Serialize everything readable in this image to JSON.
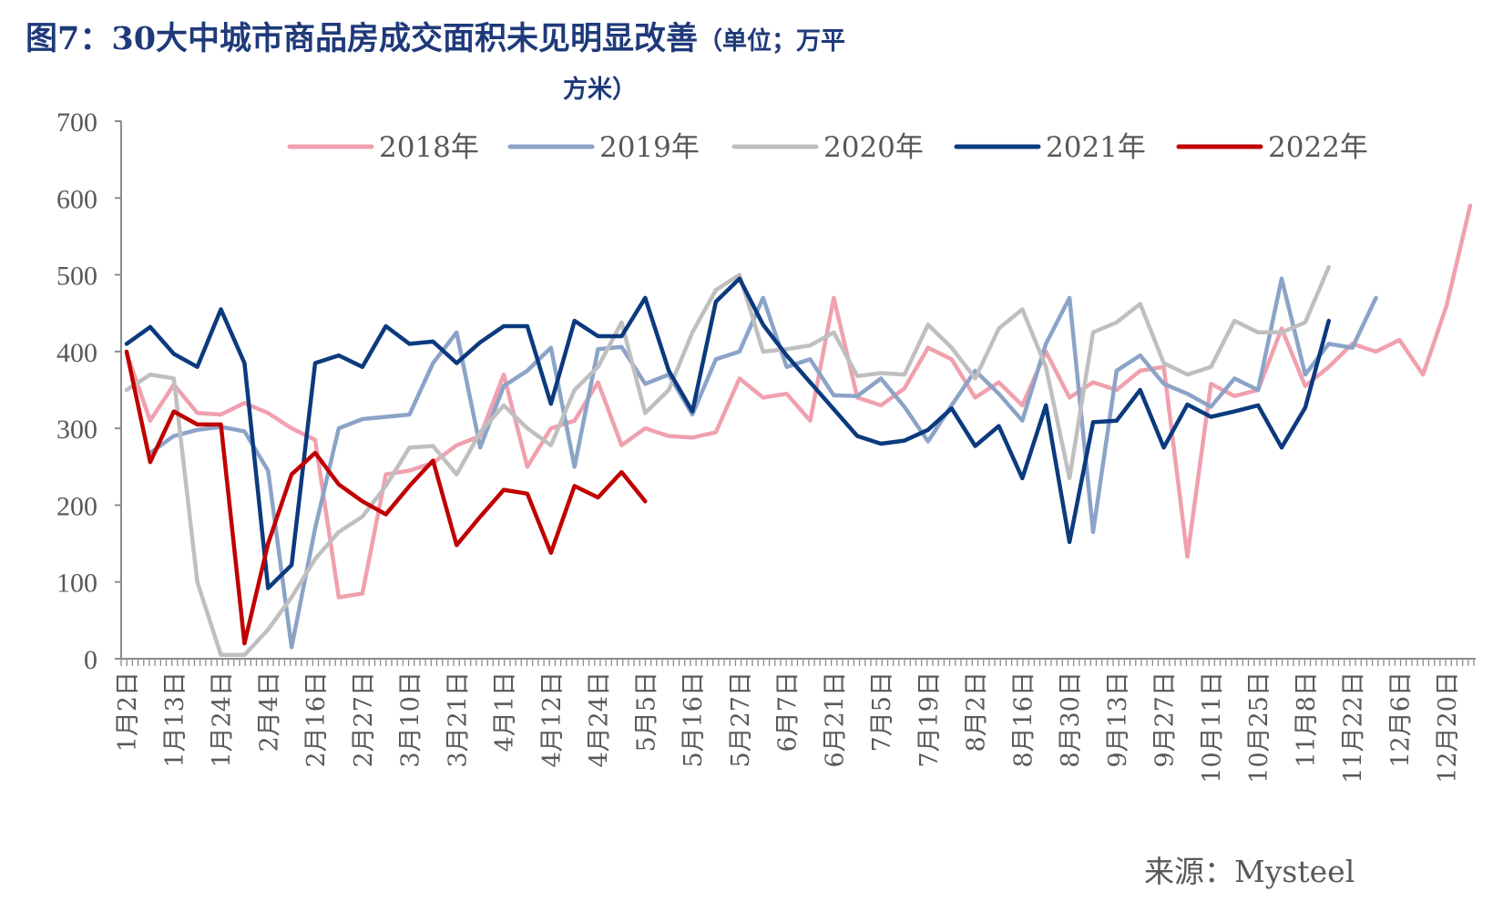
{
  "title": {
    "main": "图7：30大中城市商品房成交面积未见明显改善",
    "unit_open": "（单位；万平",
    "unit_close": "方米）"
  },
  "source": "来源：Mysteel",
  "chart_data": {
    "type": "line",
    "ylim": [
      0,
      700
    ],
    "yticks": [
      0,
      100,
      200,
      300,
      400,
      500,
      600,
      700
    ],
    "grid": false,
    "legend_position": "top",
    "x_tick_labels": [
      "1月2日",
      "1月13日",
      "1月24日",
      "2月4日",
      "2月16日",
      "2月27日",
      "3月10日",
      "3月21日",
      "4月1日",
      "4月12日",
      "4月24日",
      "5月5日",
      "5月16日",
      "5月27日",
      "6月7日",
      "6月21日",
      "7月5日",
      "7月19日",
      "8月2日",
      "8月16日",
      "8月30日",
      "9月13日",
      "9月27日",
      "10月11日",
      "10月25日",
      "11月8日",
      "11月22日",
      "12月6日",
      "12月20日"
    ],
    "x_tick_positions": [
      0,
      2,
      4,
      6,
      8,
      10,
      12,
      14,
      16,
      18,
      20,
      22,
      24,
      26,
      28,
      30,
      32,
      34,
      36,
      38,
      40,
      42,
      44,
      46,
      48,
      50,
      52,
      54,
      56
    ],
    "n_points": 58,
    "series": [
      {
        "name": "2018年",
        "color": "#f0a0ae",
        "values": [
          398,
          310,
          357,
          320,
          318,
          333,
          320,
          300,
          285,
          80,
          85,
          240,
          245,
          255,
          278,
          290,
          370,
          250,
          300,
          310,
          360,
          278,
          300,
          290,
          288,
          295,
          365,
          340,
          345,
          310,
          470,
          340,
          330,
          352,
          405,
          390,
          340,
          360,
          330,
          400,
          340,
          360,
          350,
          375,
          380,
          133,
          358,
          342,
          350,
          430,
          355,
          380,
          410,
          400,
          415,
          370,
          460,
          590
        ]
      },
      {
        "name": "2019年",
        "color": "#8ca3c8",
        "values": [
          null,
          268,
          290,
          298,
          302,
          296,
          245,
          15,
          170,
          300,
          312,
          315,
          318,
          385,
          425,
          275,
          355,
          375,
          405,
          250,
          403,
          406,
          358,
          370,
          318,
          390,
          400,
          470,
          380,
          390,
          343,
          342,
          365,
          328,
          283,
          330,
          375,
          345,
          310,
          410,
          470,
          165,
          375,
          395,
          358,
          345,
          328,
          365,
          350,
          495,
          370,
          410,
          405,
          470
        ]
      },
      {
        "name": "2020年",
        "color": "#bfbfbf",
        "values": [
          350,
          370,
          365,
          100,
          5,
          5,
          38,
          80,
          130,
          165,
          185,
          225,
          275,
          277,
          240,
          295,
          330,
          300,
          278,
          350,
          380,
          438,
          320,
          350,
          425,
          480,
          500,
          400,
          403,
          408,
          425,
          368,
          372,
          370,
          435,
          405,
          365,
          430,
          455,
          380,
          235,
          425,
          438,
          462,
          385,
          370,
          380,
          440,
          425,
          425,
          438,
          510
        ]
      },
      {
        "name": "2021年",
        "color": "#0b3a7e",
        "values": [
          410,
          432,
          397,
          380,
          455,
          385,
          92,
          122,
          385,
          395,
          380,
          433,
          410,
          413,
          385,
          412,
          433,
          433,
          332,
          440,
          420,
          420,
          470,
          375,
          322,
          465,
          495,
          435,
          395,
          360,
          325,
          290,
          280,
          284,
          298,
          326,
          277,
          303,
          235,
          330,
          152,
          308,
          310,
          350,
          275,
          331,
          315,
          322,
          330,
          275,
          327,
          440
        ]
      },
      {
        "name": "2022年",
        "color": "#c00000",
        "values": [
          400,
          256,
          322,
          305,
          305,
          20,
          150,
          240,
          268,
          227,
          205,
          188,
          225,
          258,
          148,
          185,
          220,
          215,
          138,
          225,
          210,
          243,
          205
        ]
      }
    ]
  }
}
